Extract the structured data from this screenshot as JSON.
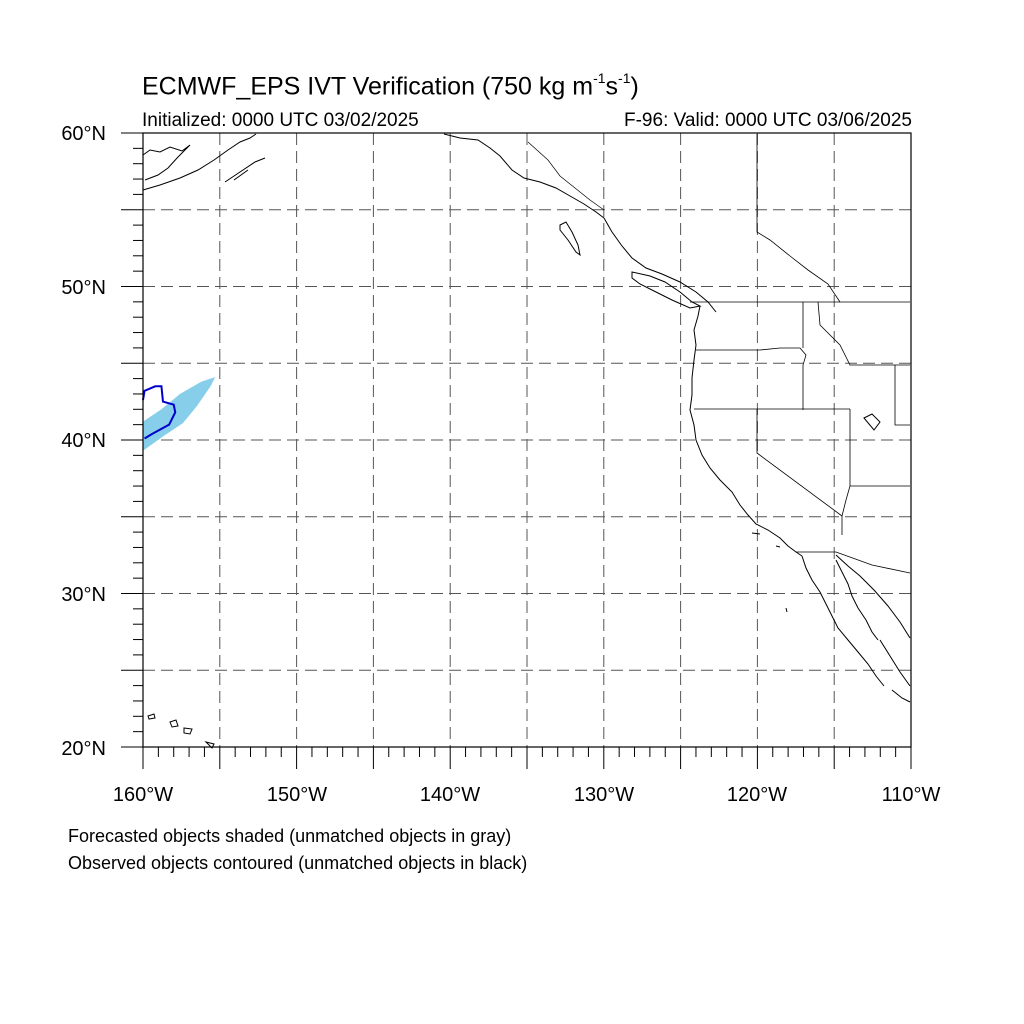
{
  "title": {
    "prefix": "ECMWF_EPS IVT Verification (750 kg m",
    "sup1": "-1",
    "middle": "s",
    "sup2": "-1",
    "suffix": ")"
  },
  "subtitle": {
    "initialized": "Initialized: 0000 UTC 03/02/2025",
    "valid": "F-96: Valid: 0000 UTC 03/06/2025"
  },
  "map": {
    "lon_range": [
      -160,
      -110
    ],
    "lat_range": [
      20,
      60
    ],
    "lat_ticks": [
      "20°N",
      "30°N",
      "40°N",
      "50°N",
      "60°N"
    ],
    "lon_ticks": [
      "160°W",
      "150°W",
      "140°W",
      "130°W",
      "120°W",
      "110°W"
    ],
    "grid": "dashed, every 5°",
    "colors": {
      "forecast_fill": "#87ceeb",
      "observed_contour": "#0000cc",
      "coastline": "#000000",
      "grid": "#555555"
    },
    "forecast_object": {
      "label": "",
      "polygon": [
        [
          -160,
          39.3
        ],
        [
          -158.6,
          40.3
        ],
        [
          -157.4,
          41.1
        ],
        [
          -156.5,
          42.2
        ],
        [
          -155.6,
          43.5
        ],
        [
          -155.3,
          44.1
        ],
        [
          -156.2,
          43.8
        ],
        [
          -157.6,
          43.0
        ],
        [
          -158.8,
          42.0
        ],
        [
          -160,
          41.2
        ]
      ]
    },
    "observed_object": {
      "polyline": [
        [
          -160,
          42.6
        ],
        [
          -159.9,
          43.2
        ],
        [
          -159.2,
          43.5
        ],
        [
          -158.8,
          43.5
        ],
        [
          -158.7,
          42.5
        ],
        [
          -158.0,
          42.3
        ],
        [
          -157.9,
          41.8
        ],
        [
          -158.3,
          41.0
        ],
        [
          -159.4,
          40.4
        ],
        [
          -159.9,
          40.1
        ]
      ]
    }
  },
  "notes": {
    "forecast": "Forecasted objects shaded (unmatched objects in gray)",
    "observed": "Observed objects contoured (unmatched objects in black)"
  }
}
